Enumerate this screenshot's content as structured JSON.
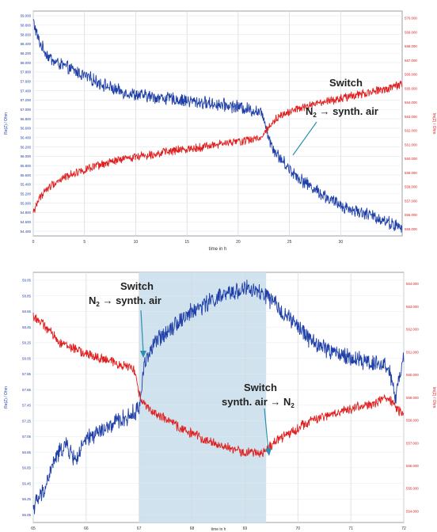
{
  "chart_data": [
    {
      "type": "line",
      "title": "",
      "xlabel": "time in h",
      "ylabel_left": "Re(Z) / Ohm",
      "ylabel_right": "Im(Z) / Ohm",
      "xlim": [
        0,
        36
      ],
      "ylim_left": [
        54.3,
        59.0
      ],
      "ylim_right": [
        555.0,
        570.0
      ],
      "xticks": [
        "0",
        "5",
        "10",
        "15",
        "20",
        "25",
        "30"
      ],
      "xtick_values": [
        0,
        5,
        10,
        15,
        20,
        25,
        30
      ],
      "yticks_left": [
        "59.000",
        "58.800",
        "58.600",
        "58.400",
        "58.200",
        "58.000",
        "57.800",
        "57.600",
        "57.400",
        "57.200",
        "57.000",
        "56.800",
        "56.600",
        "56.400",
        "56.200",
        "56.000",
        "55.800",
        "55.600",
        "55.400",
        "55.200",
        "55.000",
        "54.800",
        "54.600",
        "54.400"
      ],
      "yticks_right": [
        "570.000",
        "569.000",
        "568.000",
        "567.000",
        "566.000",
        "565.000",
        "564.000",
        "563.000",
        "562.000",
        "561.000",
        "560.000",
        "559.000",
        "558.000",
        "557.000",
        "556.000",
        "555.000"
      ],
      "grid": true,
      "series": [
        {
          "axis": "left",
          "color": "#1f3fa8",
          "x": [
            0,
            0.3,
            0.6,
            1,
            1.5,
            2,
            3,
            4,
            5,
            6,
            7,
            8,
            10,
            12,
            14,
            16,
            18,
            20,
            21,
            22,
            22.5,
            23,
            23.5,
            24,
            25,
            26,
            27,
            28,
            29,
            30,
            31,
            32,
            33,
            34,
            35,
            36
          ],
          "values": [
            58.8,
            58.55,
            58.35,
            58.2,
            58.05,
            57.95,
            57.85,
            57.75,
            57.65,
            57.55,
            57.45,
            57.35,
            57.25,
            57.2,
            57.15,
            57.1,
            57.05,
            57.0,
            56.95,
            56.9,
            56.8,
            56.35,
            56.1,
            55.95,
            55.7,
            55.5,
            55.35,
            55.2,
            55.05,
            54.95,
            54.85,
            54.8,
            54.72,
            54.65,
            54.55,
            54.45
          ],
          "noise": 0.12
        },
        {
          "axis": "right",
          "color": "#e02020",
          "x": [
            0,
            0.3,
            0.6,
            1,
            1.5,
            2,
            3,
            4,
            5,
            6,
            7,
            8,
            10,
            12,
            14,
            16,
            18,
            20,
            21,
            22,
            22.5,
            23,
            23.5,
            24,
            25,
            26,
            27,
            28,
            29,
            30,
            31,
            32,
            33,
            34,
            35,
            36
          ],
          "values": [
            556.5,
            557.1,
            557.5,
            557.9,
            558.2,
            558.5,
            558.9,
            559.2,
            559.4,
            559.6,
            559.8,
            560.0,
            560.3,
            560.5,
            560.7,
            560.9,
            561.1,
            561.3,
            561.4,
            561.5,
            561.8,
            562.3,
            562.7,
            563.0,
            563.3,
            563.5,
            563.7,
            563.85,
            564.0,
            564.15,
            564.3,
            564.45,
            564.6,
            564.75,
            564.9,
            565.1
          ],
          "noise": 0.25
        }
      ],
      "annotations": [
        {
          "text_main": "Switch",
          "text_sub": "",
          "x": 22.7,
          "y_axis": "left",
          "y": 56.2,
          "label_x": 23.6,
          "label_y": 57.1
        },
        {
          "text_main": "N2 → synth. air",
          "text_sub": "",
          "x": 22.7,
          "y_axis": "left",
          "y": 56.2
        }
      ],
      "labels": {
        "switch": "Switch",
        "switch_detail_prefix": "N",
        "switch_detail_sub": "2",
        "switch_detail_suffix": " → synth. air"
      }
    },
    {
      "type": "line",
      "title": "",
      "xlabel": "time in h",
      "ylabel_left": "Re(Z) / Ohm",
      "ylabel_right": "Im(Z) / Ohm",
      "xlim": [
        65,
        72
      ],
      "ylim_left": [
        55.9,
        59.1
      ],
      "ylim_right": [
        553.7,
        564.1
      ],
      "xticks": [
        "65",
        "66",
        "67",
        "68",
        "69",
        "70",
        "71",
        "72"
      ],
      "xtick_values": [
        65,
        66,
        67,
        68,
        69,
        70,
        71,
        72
      ],
      "yticks_left": [
        "59.05",
        "58.85",
        "58.65",
        "58.45",
        "58.25",
        "58.05",
        "57.85",
        "57.65",
        "57.45",
        "57.25",
        "57.05",
        "56.85",
        "56.65",
        "56.45",
        "56.25",
        "56.05"
      ],
      "yticks_right": [
        "564.000",
        "563.000",
        "562.000",
        "561.000",
        "560.000",
        "559.000",
        "558.000",
        "557.000",
        "556.000",
        "555.000",
        "554.000"
      ],
      "grid": true,
      "highlight": [
        67.0,
        69.4
      ],
      "highlight_color": "#cfe2ee",
      "series": [
        {
          "axis": "left",
          "color": "#1f3fa8",
          "x": [
            65,
            65.2,
            65.4,
            65.6,
            65.8,
            66.0,
            66.2,
            66.4,
            66.6,
            66.8,
            67.0,
            67.1,
            67.3,
            67.6,
            68.0,
            68.4,
            68.8,
            69.0,
            69.2,
            69.4,
            69.7,
            70.0,
            70.3,
            70.6,
            71.0,
            71.4,
            71.7,
            71.85,
            72
          ],
          "values": [
            56.1,
            56.3,
            56.7,
            56.9,
            56.7,
            56.95,
            57.05,
            57.1,
            57.2,
            57.25,
            57.35,
            57.95,
            58.2,
            58.4,
            58.6,
            58.75,
            58.85,
            58.9,
            58.85,
            58.8,
            58.6,
            58.4,
            58.2,
            58.1,
            58.0,
            57.95,
            57.9,
            57.5,
            58.0
          ],
          "noise": 0.1
        },
        {
          "axis": "right",
          "color": "#e02020",
          "x": [
            65,
            65.2,
            65.5,
            65.8,
            66.0,
            66.3,
            66.6,
            66.9,
            67.0,
            67.2,
            67.5,
            67.8,
            68.1,
            68.4,
            68.7,
            69.0,
            69.3,
            69.4,
            69.6,
            69.9,
            70.2,
            70.5,
            70.8,
            71.1,
            71.4,
            71.7,
            72
          ],
          "values": [
            562.3,
            561.9,
            561.2,
            560.9,
            560.7,
            560.5,
            560.3,
            560.1,
            559.0,
            558.4,
            558.0,
            557.6,
            557.3,
            557.0,
            556.8,
            556.6,
            556.6,
            556.7,
            557.1,
            557.5,
            557.9,
            558.1,
            558.3,
            558.5,
            558.6,
            558.9,
            558.1
          ],
          "noise": 0.18
        }
      ],
      "labels": {
        "switch1": "Switch",
        "switch1_detail_prefix": "N",
        "switch1_detail_sub": "2",
        "switch1_detail_suffix": " → synth. air",
        "switch2": "Switch",
        "switch2_detail_prefix": "synth. air → N",
        "switch2_detail_sub": "2"
      }
    }
  ]
}
